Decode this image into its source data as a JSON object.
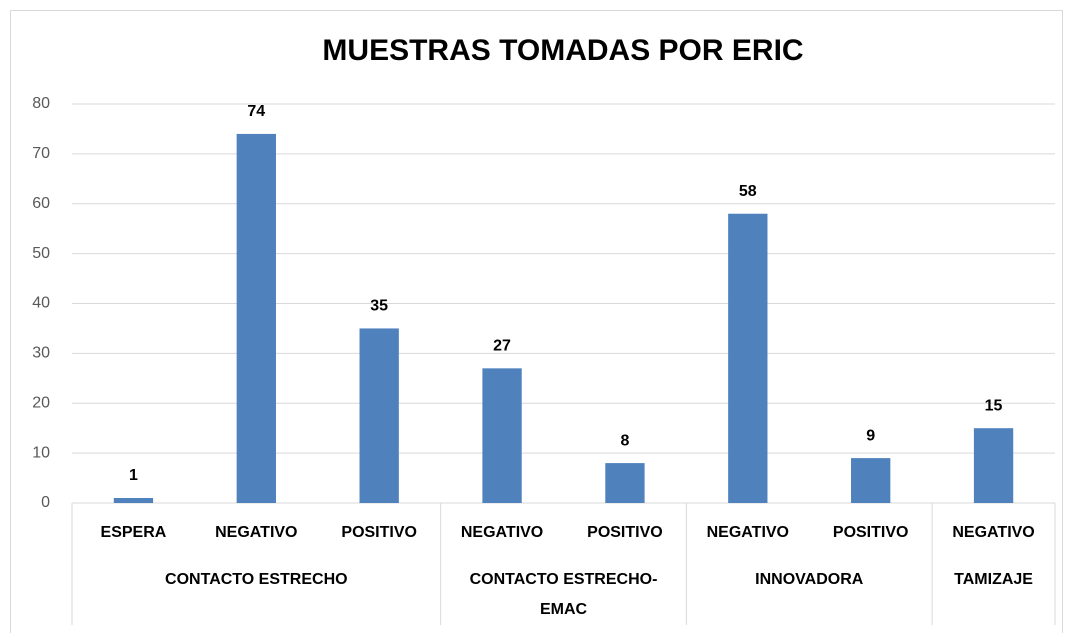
{
  "chart_data": {
    "type": "bar",
    "title": "MUESTRAS TOMADAS POR ERIC",
    "color": "#4f81bd",
    "grid": true,
    "ylim": [
      0,
      80
    ],
    "yticks": [
      0,
      10,
      20,
      30,
      40,
      50,
      60,
      70,
      80
    ],
    "groups": [
      {
        "name": "CONTACTO ESTRECHO",
        "categories": [
          "ESPERA",
          "NEGATIVO",
          "POSITIVO"
        ],
        "values": [
          1,
          74,
          35
        ]
      },
      {
        "name": "CONTACTO ESTRECHO-EMAC",
        "categories": [
          "NEGATIVO",
          "POSITIVO"
        ],
        "values": [
          27,
          8
        ]
      },
      {
        "name": "INNOVADORA",
        "categories": [
          "NEGATIVO",
          "POSITIVO"
        ],
        "values": [
          58,
          9
        ]
      },
      {
        "name": "TAMIZAJE",
        "categories": [
          "NEGATIVO"
        ],
        "values": [
          15
        ]
      }
    ]
  }
}
